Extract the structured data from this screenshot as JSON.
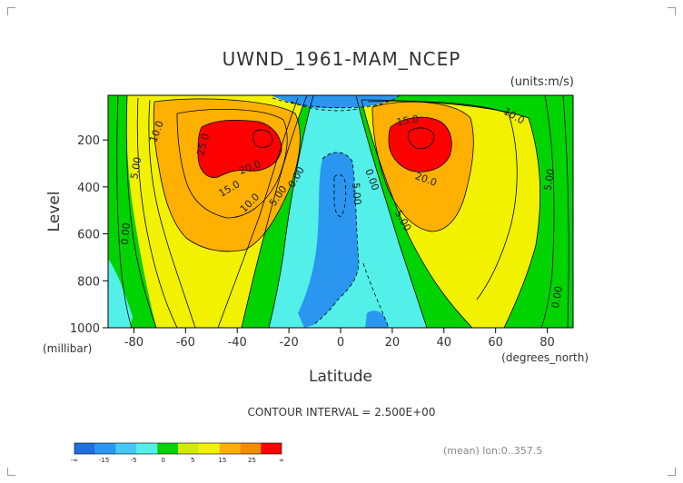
{
  "chart_data": {
    "type": "contour",
    "title": "UWND_1961-MAM_NCEP",
    "units": "(units:m/s)",
    "xlabel": "Latitude",
    "x_units": "(degrees_north)",
    "ylabel": "Level",
    "y_units": "(millibar)",
    "xlim": [
      -90,
      90
    ],
    "ylim": [
      1000,
      10
    ],
    "x_ticks": [
      "-80",
      "-60",
      "-40",
      "-20",
      "0",
      "20",
      "40",
      "60",
      "80"
    ],
    "y_ticks": [
      "200",
      "400",
      "600",
      "800",
      "1000"
    ],
    "contour_interval_text": "CONTOUR INTERVAL = 2.500E+00",
    "mean_note": "(mean) lon:0..357.5",
    "jets": [
      {
        "lat": -30,
        "level": 200,
        "max": 30
      },
      {
        "lat": 30,
        "level": 200,
        "max": 30
      }
    ],
    "contour_labels": [
      {
        "text": "10.0",
        "lat": -71,
        "level": 165,
        "angle": -70
      },
      {
        "text": "5.00",
        "lat": -79,
        "level": 320,
        "angle": -80
      },
      {
        "text": "0.00",
        "lat": -83,
        "level": 600,
        "angle": -85
      },
      {
        "text": "25.0",
        "lat": -53,
        "level": 220,
        "angle": -75
      },
      {
        "text": "20.0",
        "lat": -35,
        "level": 320,
        "angle": -20
      },
      {
        "text": "15.0",
        "lat": -43,
        "level": 410,
        "angle": -30
      },
      {
        "text": "10.0",
        "lat": -35,
        "level": 470,
        "angle": -45
      },
      {
        "text": "5.00",
        "lat": -24,
        "level": 440,
        "angle": -55
      },
      {
        "text": "0.00",
        "lat": -17,
        "level": 360,
        "angle": -60
      },
      {
        "text": "0.00",
        "lat": 12,
        "level": 370,
        "angle": 70
      },
      {
        "text": "5.00",
        "lat": 6,
        "level": 430,
        "angle": 85
      },
      {
        "text": "5.00",
        "lat": 24,
        "level": 545,
        "angle": 60
      },
      {
        "text": "15.0",
        "lat": 26,
        "level": 120,
        "angle": -10
      },
      {
        "text": "20.0",
        "lat": 33,
        "level": 370,
        "angle": 20
      },
      {
        "text": "10.0",
        "lat": 67,
        "level": 100,
        "angle": 30
      },
      {
        "text": "5.00",
        "lat": 81,
        "level": 370,
        "angle": -80
      },
      {
        "text": "0.00",
        "lat": 84,
        "level": 870,
        "angle": -80
      }
    ],
    "colorbar": {
      "ticks": [
        "-∞",
        "-15",
        "-5",
        "0",
        "5",
        "15",
        "25",
        "∞"
      ],
      "colors": [
        "#1e6fe0",
        "#2a96f0",
        "#46c8f5",
        "#52f0e8",
        "#00d400",
        "#d2ea00",
        "#f2f200",
        "#ffb000",
        "#f28c00",
        "#ff0000"
      ]
    }
  }
}
